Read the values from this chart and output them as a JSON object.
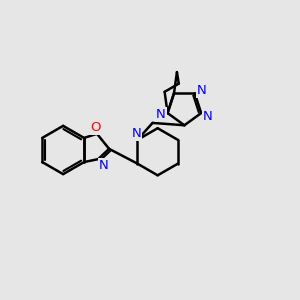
{
  "bg_color": "#e6e6e6",
  "bond_color": "#000000",
  "N_color": "#0000ff",
  "O_color": "#ff0000",
  "line_width": 1.8,
  "figsize": [
    3.0,
    3.0
  ],
  "dpi": 100,
  "xlim": [
    0,
    10
  ],
  "ylim": [
    0,
    10
  ]
}
